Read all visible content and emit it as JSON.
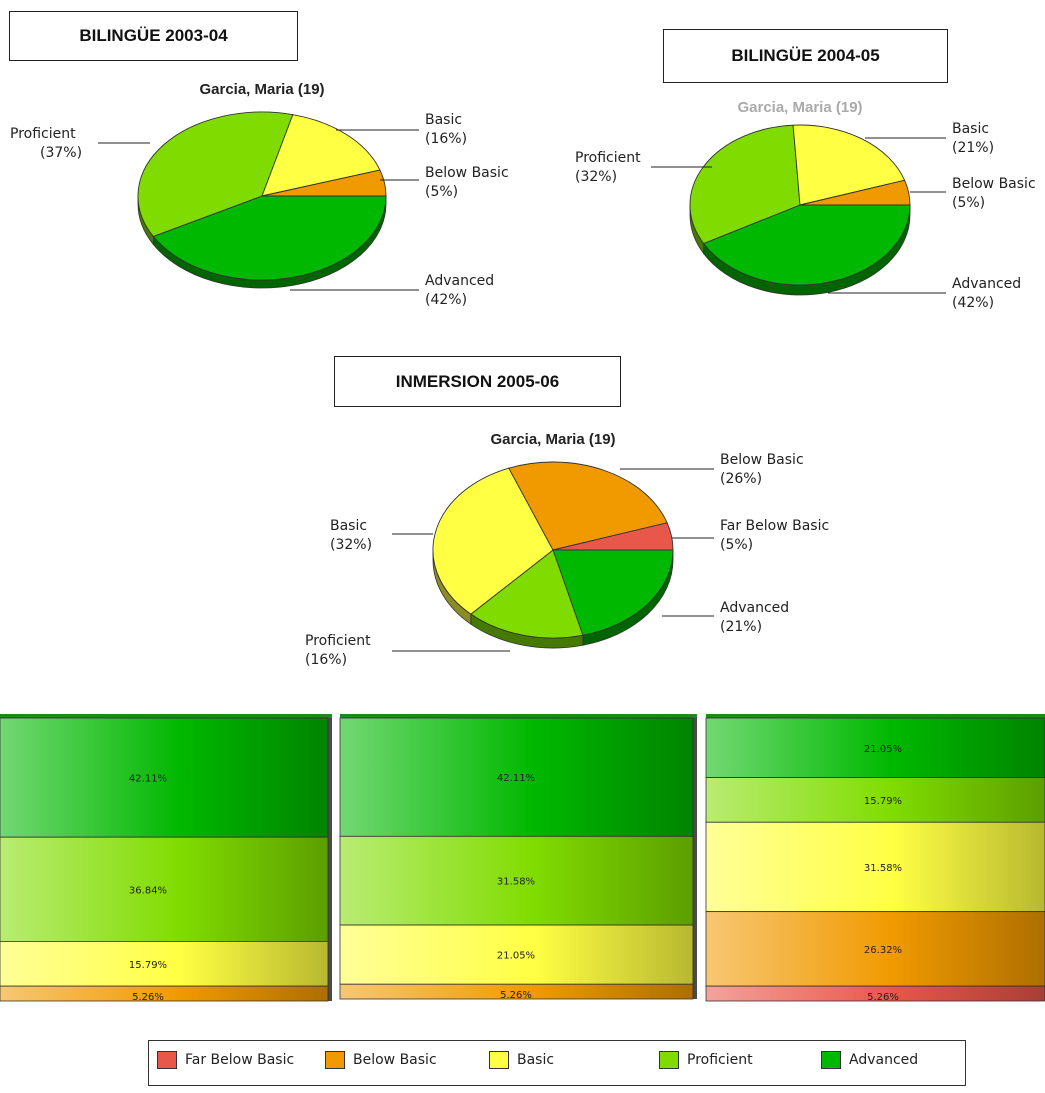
{
  "headers": [
    "BILINGÜE 2003-04",
    "BILINGÜE  2004-05",
    "INMERSION  2005-06"
  ],
  "colors": {
    "Far Below Basic": "#e8574a",
    "Below Basic": "#f09a00",
    "Basic": "#ffff44",
    "Proficient": "#80dc00",
    "Advanced": "#00b800"
  },
  "legend": [
    "Far Below Basic",
    "Below Basic",
    "Basic",
    "Proficient",
    "Advanced"
  ],
  "chart_data": [
    {
      "type": "pie",
      "title": "Garcia, Maria (19)",
      "slices": [
        {
          "label": "Advanced",
          "pct_label": "(42%)",
          "value": 42
        },
        {
          "label": "Proficient",
          "pct_label": "(37%)",
          "value": 37
        },
        {
          "label": "Basic",
          "pct_label": "(16%)",
          "value": 16
        },
        {
          "label": "Below Basic",
          "pct_label": "(5%)",
          "value": 5
        }
      ]
    },
    {
      "type": "pie",
      "title": "Garcia, Maria (19)",
      "slices": [
        {
          "label": "Advanced",
          "pct_label": "(42%)",
          "value": 42
        },
        {
          "label": "Proficient",
          "pct_label": "(32%)",
          "value": 32
        },
        {
          "label": "Basic",
          "pct_label": "(21%)",
          "value": 21
        },
        {
          "label": "Below Basic",
          "pct_label": "(5%)",
          "value": 5
        }
      ]
    },
    {
      "type": "pie",
      "title": "Garcia, Maria (19)",
      "slices": [
        {
          "label": "Advanced",
          "pct_label": "(21%)",
          "value": 21
        },
        {
          "label": "Proficient",
          "pct_label": "(16%)",
          "value": 16
        },
        {
          "label": "Basic",
          "pct_label": "(32%)",
          "value": 32
        },
        {
          "label": "Below Basic",
          "pct_label": "(26%)",
          "value": 26
        },
        {
          "label": "Far Below Basic",
          "pct_label": "(5%)",
          "value": 5
        }
      ]
    },
    {
      "type": "bar",
      "stacked": true,
      "segments": [
        {
          "category": "Advanced",
          "value": 42.11,
          "label": "42.11%"
        },
        {
          "category": "Proficient",
          "value": 36.84,
          "label": "36.84%"
        },
        {
          "category": "Basic",
          "value": 15.79,
          "label": "15.79%"
        },
        {
          "category": "Below Basic",
          "value": 5.26,
          "label": "5.26%"
        }
      ]
    },
    {
      "type": "bar",
      "stacked": true,
      "segments": [
        {
          "category": "Advanced",
          "value": 42.11,
          "label": "42.11%"
        },
        {
          "category": "Proficient",
          "value": 31.58,
          "label": "31.58%"
        },
        {
          "category": "Basic",
          "value": 21.05,
          "label": "21.05%"
        },
        {
          "category": "Below Basic",
          "value": 5.26,
          "label": "5.26%"
        }
      ]
    },
    {
      "type": "bar",
      "stacked": true,
      "segments": [
        {
          "category": "Advanced",
          "value": 21.05,
          "label": "21.05%"
        },
        {
          "category": "Proficient",
          "value": 15.79,
          "label": "15.79%"
        },
        {
          "category": "Basic",
          "value": 31.58,
          "label": "31.58%"
        },
        {
          "category": "Below Basic",
          "value": 26.32,
          "label": "26.32%"
        },
        {
          "category": "Far Below Basic",
          "value": 5.26,
          "label": "5.26%"
        }
      ]
    }
  ]
}
